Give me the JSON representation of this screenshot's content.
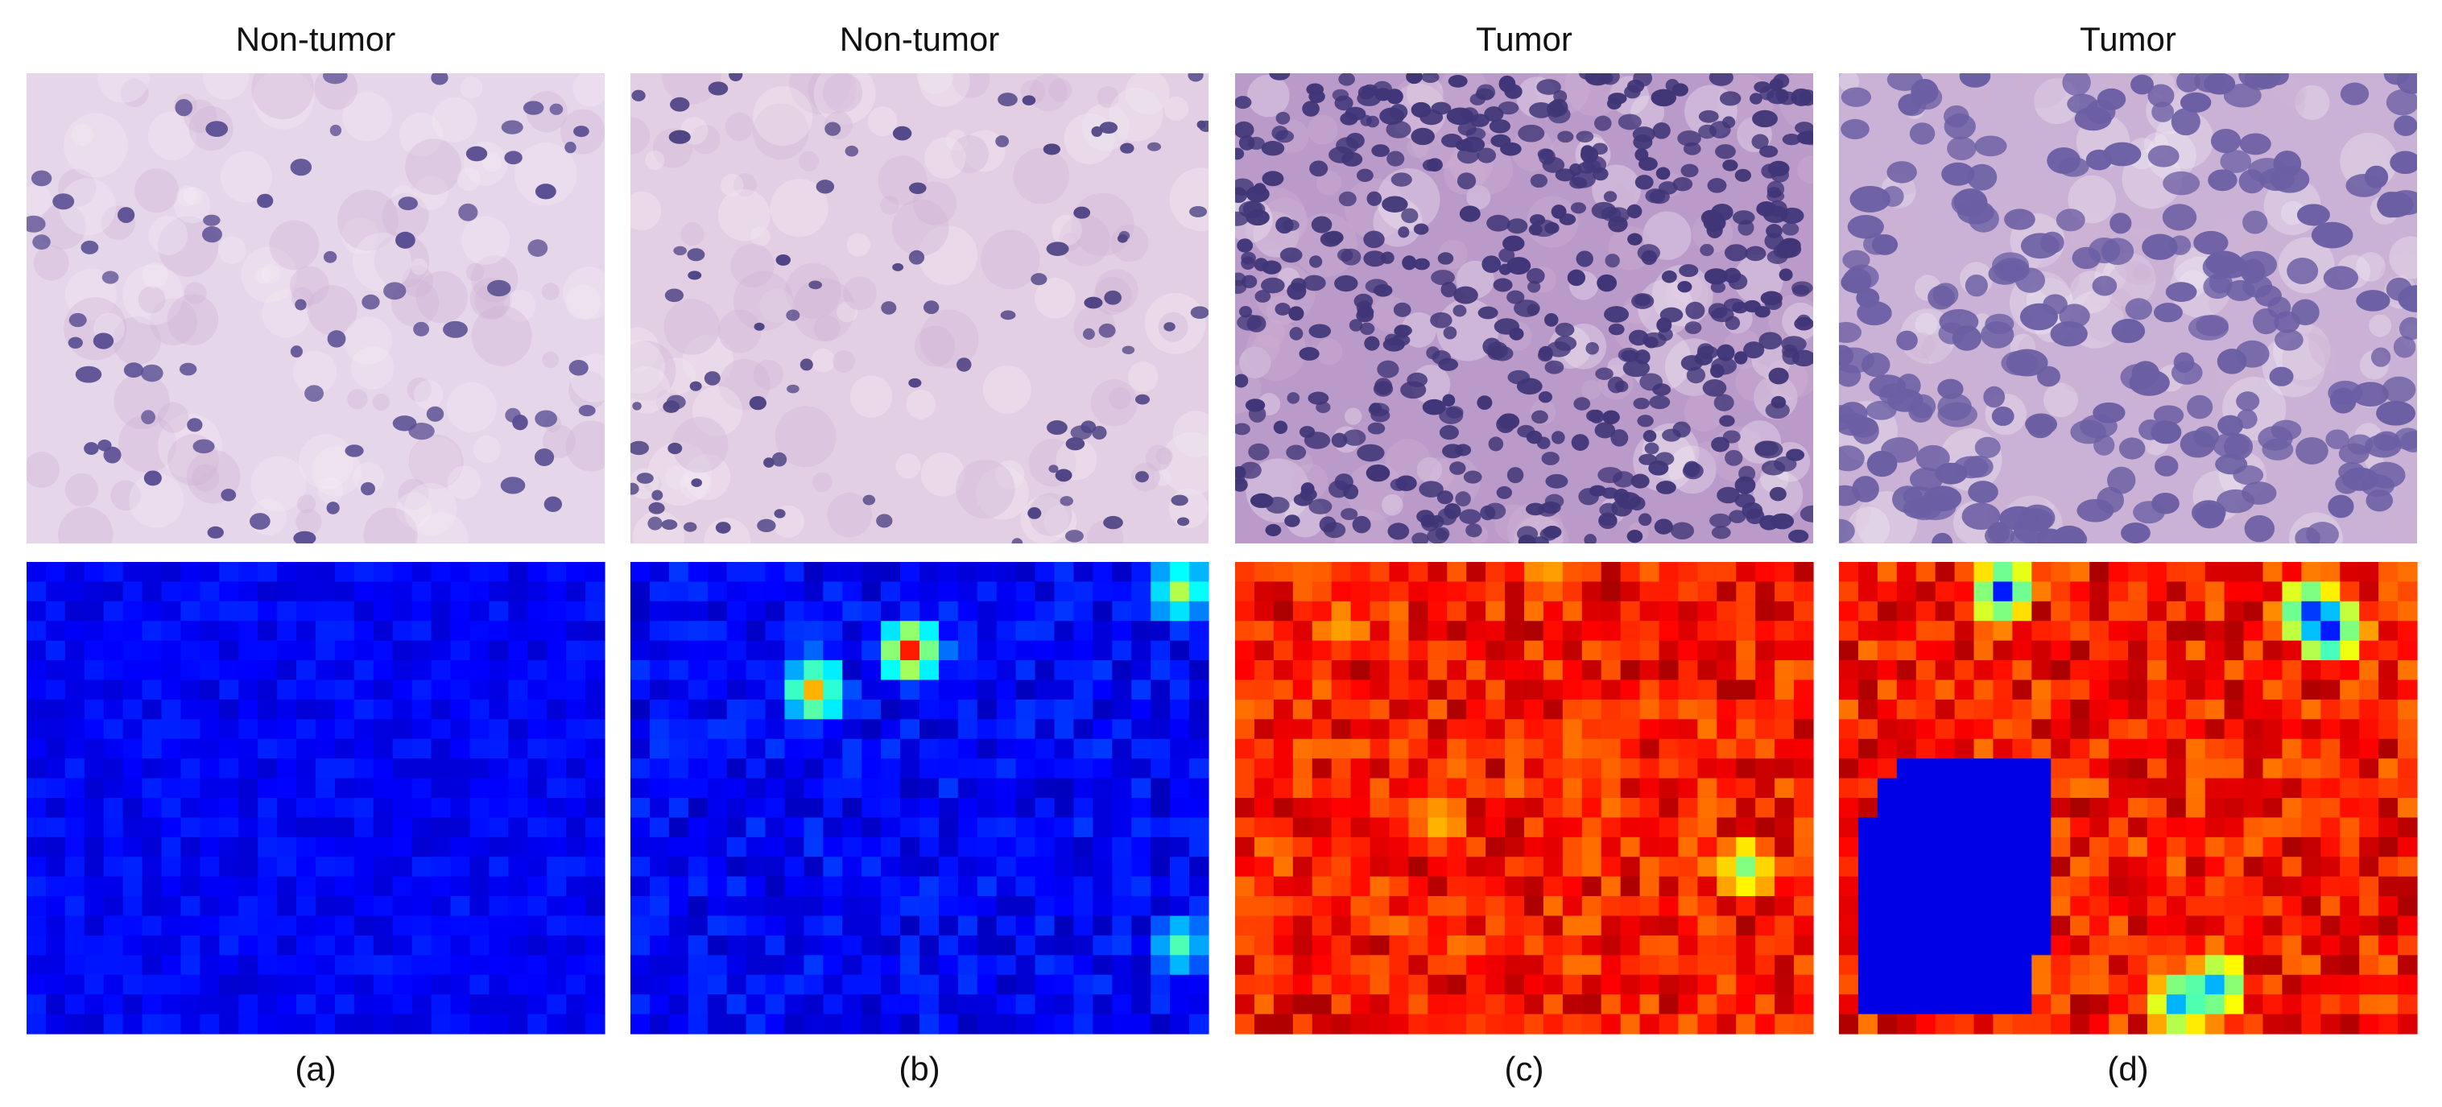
{
  "panels": [
    {
      "title": "Non-tumor",
      "caption": "(a)"
    },
    {
      "title": "Non-tumor",
      "caption": "(b)"
    },
    {
      "title": "Tumor",
      "caption": "(c)"
    },
    {
      "title": "Tumor",
      "caption": "(d)"
    }
  ]
}
